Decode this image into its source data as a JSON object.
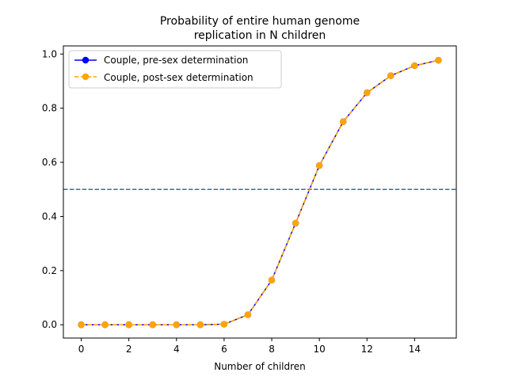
{
  "chart_data": {
    "type": "line",
    "title_line1": "Probability of entire human genome",
    "title_line2": "replication in N children",
    "xlabel": "Number of children",
    "ylabel": "",
    "xlim": [
      -0.75,
      15.75
    ],
    "ylim": [
      -0.049,
      1.03
    ],
    "xticks": [
      0,
      2,
      4,
      6,
      8,
      10,
      12,
      14
    ],
    "xtick_labels": [
      "0",
      "2",
      "4",
      "6",
      "8",
      "10",
      "12",
      "14"
    ],
    "yticks": [
      0.0,
      0.2,
      0.4,
      0.6,
      0.8,
      1.0
    ],
    "ytick_labels": [
      "0.0",
      "0.2",
      "0.4",
      "0.6",
      "0.8",
      "1.0"
    ],
    "grid": false,
    "legend_position": "upper-left",
    "reference_line": {
      "y": 0.5,
      "style": "dashed",
      "color": "#1f77b4"
    },
    "x": [
      0,
      1,
      2,
      3,
      4,
      5,
      6,
      7,
      8,
      9,
      10,
      11,
      12,
      13,
      14,
      15
    ],
    "series": [
      {
        "name": "Couple, pre-sex determination",
        "color": "#0000ff",
        "line_style": "solid",
        "marker": "circle",
        "values": [
          0.0,
          0.0,
          0.0,
          0.0,
          0.0,
          0.0,
          0.002,
          0.037,
          0.165,
          0.375,
          0.588,
          0.75,
          0.857,
          0.92,
          0.957,
          0.977
        ]
      },
      {
        "name": "Couple, post-sex determination",
        "color": "#ffa500",
        "line_style": "dashed",
        "marker": "circle",
        "values": [
          0.0,
          0.0,
          0.0,
          0.0,
          0.0,
          0.0,
          0.002,
          0.037,
          0.165,
          0.375,
          0.588,
          0.75,
          0.857,
          0.92,
          0.957,
          0.977
        ]
      }
    ]
  }
}
